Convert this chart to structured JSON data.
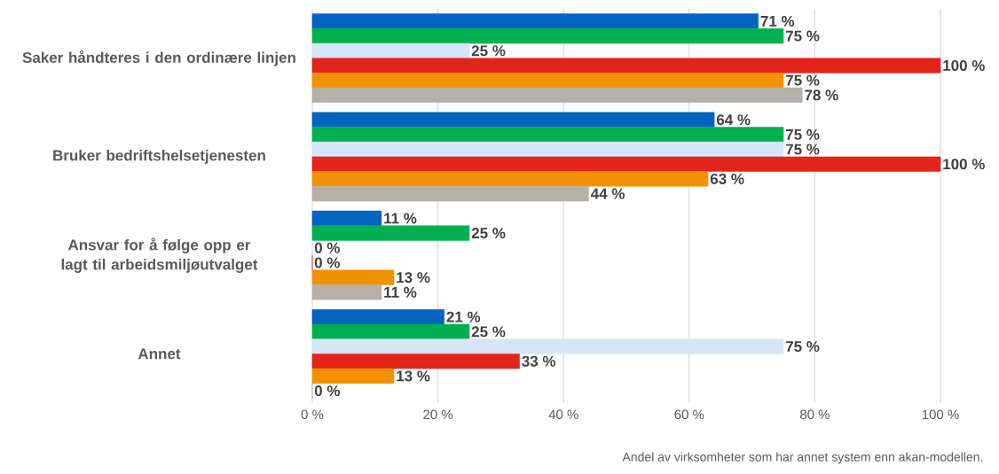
{
  "chart_data": {
    "type": "bar",
    "orientation": "horizontal",
    "categories": [
      "Saker håndteres i den ordinære linjen",
      "Bruker bedriftshelsetjenesten",
      "Ansvar for å følge opp er lagt til arbeidsmiljøutvalget",
      "Annet"
    ],
    "series": [
      {
        "color": "#0563c1",
        "values": [
          71,
          64,
          11,
          21
        ],
        "value_labels": [
          "71 %",
          "64 %",
          "11 %",
          "21 %"
        ]
      },
      {
        "color": "#00b050",
        "values": [
          75,
          75,
          25,
          25
        ],
        "value_labels": [
          "75 %",
          "75 %",
          "25 %",
          "25 %"
        ]
      },
      {
        "color": "#d6e6f6",
        "values": [
          25,
          75,
          0,
          75
        ],
        "value_labels": [
          "25 %",
          "75 %",
          "0 %",
          "75 %"
        ]
      },
      {
        "color": "#e3241b",
        "values": [
          100,
          100,
          0,
          33
        ],
        "value_labels": [
          "100 %",
          "100 %",
          "0 %",
          "33 %"
        ]
      },
      {
        "color": "#f39200",
        "values": [
          75,
          63,
          13,
          13
        ],
        "value_labels": [
          "75 %",
          "63 %",
          "13 %",
          "13 %"
        ]
      },
      {
        "color": "#b7b0a9",
        "values": [
          78,
          44,
          11,
          0
        ],
        "value_labels": [
          "78 %",
          "44 %",
          "11 %",
          "0 %"
        ]
      }
    ],
    "xlim": [
      0,
      100
    ],
    "xticks": [
      {
        "value": 0,
        "label": "0 %"
      },
      {
        "value": 20,
        "label": "20 %"
      },
      {
        "value": 40,
        "label": "40 %"
      },
      {
        "value": 60,
        "label": "60 %"
      },
      {
        "value": 80,
        "label": "80 %"
      },
      {
        "value": 100,
        "label": "100 %"
      }
    ],
    "grid": "x",
    "annotations": [
      "Andel av virksomheter som har annet system enn akan-modellen."
    ]
  }
}
